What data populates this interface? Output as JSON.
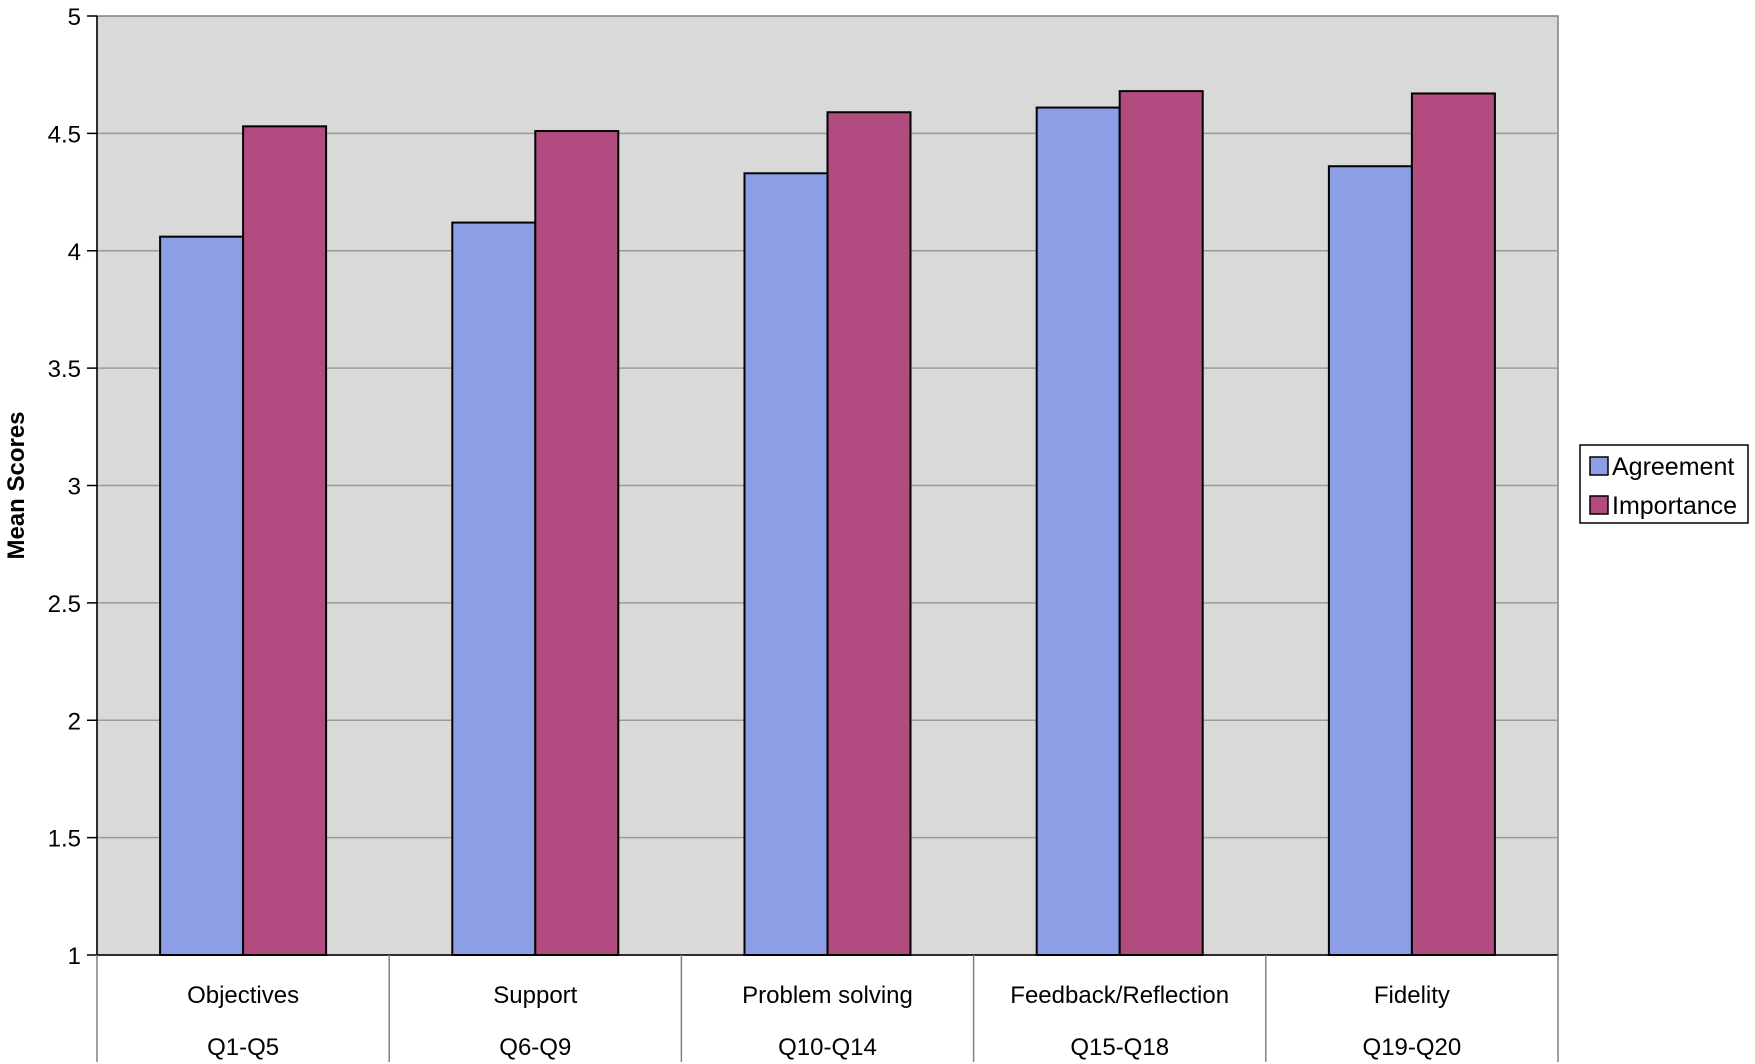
{
  "chart_data": {
    "type": "bar",
    "title": "",
    "xlabel": "",
    "ylabel": "Mean Scores",
    "ylim": [
      1,
      5
    ],
    "yticks": [
      1,
      1.5,
      2,
      2.5,
      3,
      3.5,
      4,
      4.5,
      5
    ],
    "ytick_labels": [
      "1",
      "1.5",
      "2",
      "2.5",
      "3",
      "3.5",
      "4",
      "4.5",
      "5"
    ],
    "grid": true,
    "legend_position": "right",
    "categories": [
      {
        "name": "Objectives",
        "range": "Q1-Q5"
      },
      {
        "name": "Support",
        "range": "Q6-Q9"
      },
      {
        "name": "Problem solving",
        "range": "Q10-Q14"
      },
      {
        "name": "Feedback/Reflection",
        "range": "Q15-Q18"
      },
      {
        "name": "Fidelity",
        "range": "Q19-Q20"
      }
    ],
    "series": [
      {
        "name": "Agreement",
        "color": "#8c9fe6",
        "values": [
          4.06,
          4.12,
          4.33,
          4.61,
          4.36
        ]
      },
      {
        "name": "Importance",
        "color": "#b24b80",
        "values": [
          4.53,
          4.51,
          4.59,
          4.68,
          4.67
        ]
      }
    ],
    "plot_background": "#d9d9d9",
    "grid_color": "#9a9a9a"
  }
}
